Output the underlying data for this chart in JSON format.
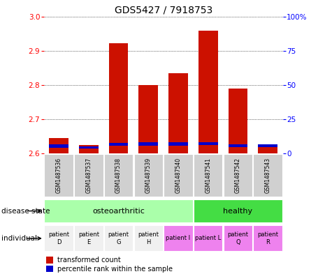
{
  "title": "GDS5427 / 7918753",
  "samples": [
    "GSM1487536",
    "GSM1487537",
    "GSM1487538",
    "GSM1487539",
    "GSM1487540",
    "GSM1487541",
    "GSM1487542",
    "GSM1487543"
  ],
  "red_values": [
    2.645,
    2.625,
    2.922,
    2.8,
    2.835,
    2.958,
    2.79,
    2.625
  ],
  "blue_bottom": [
    2.617,
    2.614,
    2.622,
    2.623,
    2.623,
    2.624,
    2.619,
    2.618
  ],
  "blue_heights": [
    0.01,
    0.007,
    0.009,
    0.009,
    0.009,
    0.009,
    0.008,
    0.008
  ],
  "ymin": 2.6,
  "ymax": 3.0,
  "yticks_left": [
    2.6,
    2.7,
    2.8,
    2.9,
    3.0
  ],
  "yticks_right": [
    0,
    25,
    50,
    75,
    100
  ],
  "yticks_right_labels": [
    "0",
    "25",
    "50",
    "75",
    "100%"
  ],
  "bar_width": 0.65,
  "disease_osteo_color": "#aaffaa",
  "disease_healthy_color": "#44dd44",
  "individual_colors_left": [
    "#f0f0f0",
    "#f0f0f0",
    "#f0f0f0",
    "#f0f0f0"
  ],
  "individual_colors_right": [
    "#ee82ee",
    "#ee82ee",
    "#ee82ee",
    "#ee82ee"
  ],
  "individual_labels": [
    "patient\nD",
    "patient\nE",
    "patient\nG",
    "patient\nH",
    "patient I",
    "patient L",
    "patient\nQ",
    "patient\nR"
  ],
  "sample_bg_color": "#d0d0d0",
  "red_color": "#cc1100",
  "blue_color": "#0000cc",
  "legend_red": "transformed count",
  "legend_blue": "percentile rank within the sample",
  "title_fontsize": 10,
  "tick_fontsize": 7.5,
  "sample_fontsize": 5.5,
  "indiv_fontsize": 6.0,
  "disease_fontsize": 8,
  "label_fontsize": 7.5
}
